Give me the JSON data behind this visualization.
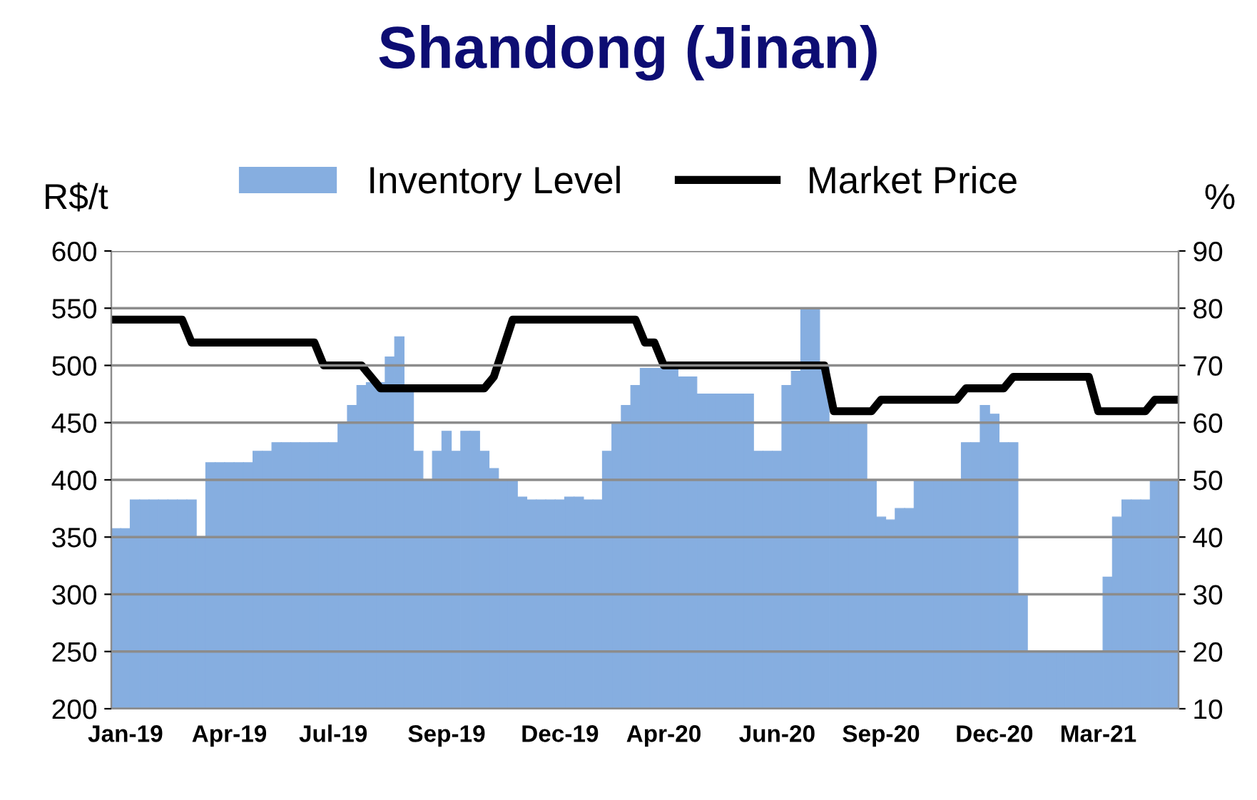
{
  "chart_data": {
    "type": "bar",
    "title": "Shandong (Jinan)",
    "ylabel": "R$/t",
    "y2label": "%",
    "categories": [
      null,
      "Jan-19",
      null,
      null,
      null,
      null,
      null,
      null,
      null,
      null,
      null,
      null,
      "Apr-19",
      null,
      null,
      null,
      null,
      null,
      null,
      null,
      null,
      null,
      null,
      "Jul-19",
      null,
      null,
      null,
      null,
      null,
      null,
      null,
      null,
      null,
      null,
      null,
      "Sep-19",
      null,
      null,
      null,
      null,
      null,
      null,
      null,
      null,
      null,
      null,
      null,
      "Dec-19",
      null,
      null,
      null,
      null,
      null,
      null,
      null,
      null,
      null,
      null,
      "Apr-20",
      null,
      null,
      null,
      null,
      null,
      null,
      null,
      null,
      null,
      null,
      null,
      "Jun-20",
      null,
      null,
      null,
      null,
      null,
      null,
      null,
      null,
      null,
      null,
      "Sep-20",
      null,
      null,
      null,
      null,
      null,
      null,
      null,
      null,
      null,
      null,
      null,
      "Dec-20",
      null,
      null,
      null,
      null,
      null,
      null,
      null,
      null,
      null,
      null,
      "Mar-21",
      null,
      null,
      null,
      null,
      null,
      null,
      null,
      null
    ],
    "series": [
      {
        "name": "Inventory Level",
        "axis": "y2",
        "color": "#86aee0",
        "values": [
          41.5,
          41.5,
          46.5,
          46.5,
          46.5,
          46.5,
          46.5,
          46.5,
          46.5,
          40,
          53,
          53,
          53,
          53,
          53,
          55,
          55,
          56.5,
          56.5,
          56.5,
          56.5,
          56.5,
          56.5,
          56.5,
          60,
          63,
          66.5,
          67,
          67,
          71.5,
          75,
          66,
          55,
          50,
          55,
          58.5,
          55,
          58.5,
          58.5,
          55,
          52,
          50,
          50,
          47,
          46.5,
          46.5,
          46.5,
          46.5,
          47,
          47,
          46.5,
          46.5,
          55,
          60,
          63,
          66.5,
          69.5,
          69.5,
          69.5,
          69.5,
          68,
          68,
          65,
          65,
          65,
          65,
          65,
          65,
          55,
          55,
          55,
          66.5,
          69,
          80,
          80,
          70,
          60,
          60,
          60,
          60,
          50,
          43.5,
          43,
          45,
          45,
          50,
          50,
          50,
          50,
          50,
          56.5,
          56.5,
          63,
          61.5,
          56.5,
          56.5,
          30,
          20,
          20,
          20,
          20,
          20,
          20,
          20,
          20,
          33,
          43.5,
          46.5,
          46.5,
          46.5,
          50,
          50,
          50
        ]
      },
      {
        "name": "Market Price",
        "type": "line",
        "color": "#000000",
        "values": [
          540,
          540,
          540,
          540,
          540,
          540,
          540,
          540,
          520,
          520,
          520,
          520,
          520,
          520,
          520,
          520,
          520,
          520,
          520,
          520,
          520,
          520,
          500,
          500,
          500,
          500,
          500,
          490,
          480,
          480,
          480,
          480,
          480,
          480,
          480,
          480,
          480,
          480,
          480,
          480,
          490,
          515,
          540,
          540,
          540,
          540,
          540,
          540,
          540,
          540,
          540,
          540,
          540,
          540,
          540,
          540,
          520,
          520,
          500,
          500,
          500,
          500,
          500,
          500,
          500,
          500,
          500,
          500,
          500,
          500,
          500,
          500,
          500,
          500,
          500,
          500,
          460,
          460,
          460,
          460,
          460,
          470,
          470,
          470,
          470,
          470,
          470,
          470,
          470,
          470,
          480,
          480,
          480,
          480,
          480,
          490,
          490,
          490,
          490,
          490,
          490,
          490,
          490,
          490,
          460,
          460,
          460,
          460,
          460,
          460,
          470,
          470,
          470
        ]
      }
    ],
    "ylim": [
      200,
      600
    ],
    "yticks": [
      200,
      250,
      300,
      350,
      400,
      450,
      500,
      550,
      600
    ],
    "y2lim": [
      10,
      90
    ],
    "y2ticks": [
      10,
      20,
      30,
      40,
      50,
      60,
      70,
      80,
      90
    ],
    "grid": "y",
    "legend": "top",
    "line_style": "solid",
    "marker": "none"
  }
}
